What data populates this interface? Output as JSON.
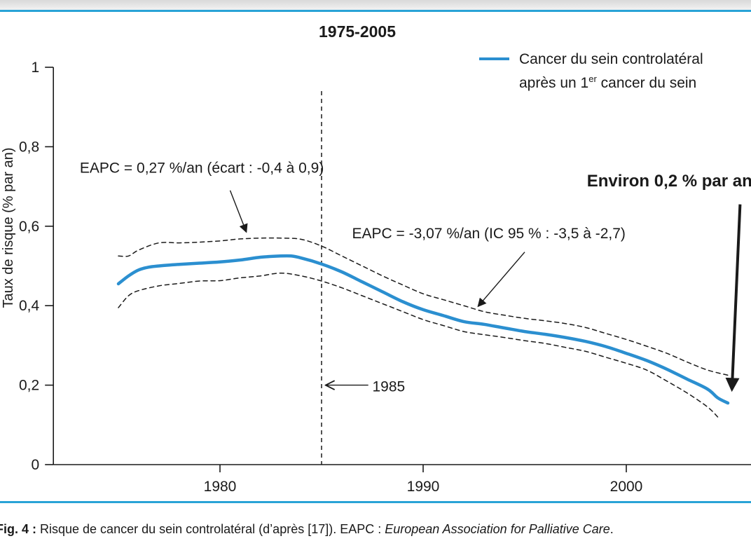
{
  "chart_data": {
    "type": "line",
    "title": "1975-2005",
    "xlabel": "",
    "ylabel": "Taux de risque (% par an)",
    "xlim": [
      1971.8,
      2006.2
    ],
    "ylim": [
      0,
      1
    ],
    "xticks": [
      {
        "value": 1980,
        "label": "1980"
      },
      {
        "value": 1990,
        "label": "1990"
      },
      {
        "value": 2000,
        "label": "2000"
      }
    ],
    "yticks": [
      {
        "value": 0,
        "label": "0"
      },
      {
        "value": 0.2,
        "label": "0,2"
      },
      {
        "value": 0.4,
        "label": "0,4"
      },
      {
        "value": 0.6,
        "label": "0,6"
      },
      {
        "value": 0.8,
        "label": "0,8"
      },
      {
        "value": 1,
        "label": "1"
      }
    ],
    "grid": false,
    "legend_position": "top-right",
    "legend": {
      "line1": "Cancer du sein controlatéral",
      "line2_before": "après un 1",
      "line2_sup": "er",
      "line2_after": " cancer du sein"
    },
    "series": [
      {
        "style": "solid",
        "color": "#2b8fd0",
        "x": [
          1975,
          1975.5,
          1976,
          1976.5,
          1977,
          1978,
          1979,
          1980,
          1981,
          1982,
          1983,
          1983.5,
          1984,
          1985,
          1986,
          1987,
          1988,
          1989,
          1990,
          1991,
          1992,
          1993,
          1994,
          1995,
          1996,
          1997,
          1998,
          1999,
          2000,
          2001,
          2002,
          2003,
          2004,
          2004.5,
          2005
        ],
        "y": [
          0.455,
          0.475,
          0.49,
          0.497,
          0.5,
          0.504,
          0.507,
          0.51,
          0.515,
          0.522,
          0.525,
          0.525,
          0.52,
          0.505,
          0.485,
          0.46,
          0.435,
          0.41,
          0.39,
          0.375,
          0.36,
          0.353,
          0.344,
          0.335,
          0.328,
          0.32,
          0.31,
          0.297,
          0.28,
          0.262,
          0.24,
          0.215,
          0.19,
          0.168,
          0.155
        ]
      },
      {
        "style": "dashed",
        "color": "#1a1a1a",
        "x": [
          1975,
          1975.5,
          1976,
          1977,
          1978,
          1979,
          1980,
          1981,
          1982,
          1983,
          1984,
          1985,
          1986,
          1987,
          1988,
          1989,
          1990,
          1991,
          1992,
          1993,
          1994,
          1995,
          1996,
          1997,
          1998,
          1999,
          2000,
          2001,
          2002,
          2003,
          2004,
          2005
        ],
        "y": [
          0.525,
          0.525,
          0.54,
          0.558,
          0.558,
          0.56,
          0.563,
          0.568,
          0.57,
          0.57,
          0.567,
          0.55,
          0.525,
          0.5,
          0.475,
          0.452,
          0.43,
          0.415,
          0.4,
          0.385,
          0.376,
          0.368,
          0.362,
          0.355,
          0.345,
          0.33,
          0.315,
          0.298,
          0.28,
          0.258,
          0.238,
          0.225
        ]
      },
      {
        "style": "dashed",
        "color": "#1a1a1a",
        "x": [
          1975,
          1975.5,
          1976,
          1977,
          1978,
          1979,
          1980,
          1981,
          1982,
          1983,
          1984,
          1985,
          1986,
          1987,
          1988,
          1989,
          1990,
          1991,
          1992,
          1993,
          1994,
          1995,
          1996,
          1997,
          1998,
          1999,
          2000,
          2001,
          2002,
          2003,
          2004,
          2004.5
        ],
        "y": [
          0.395,
          0.425,
          0.438,
          0.45,
          0.456,
          0.462,
          0.463,
          0.47,
          0.475,
          0.482,
          0.475,
          0.462,
          0.445,
          0.425,
          0.405,
          0.385,
          0.365,
          0.35,
          0.335,
          0.327,
          0.32,
          0.312,
          0.305,
          0.295,
          0.285,
          0.27,
          0.255,
          0.238,
          0.21,
          0.18,
          0.145,
          0.12
        ]
      }
    ],
    "vline": {
      "x": 1985,
      "y_top": 0.94
    },
    "annotations": [
      {
        "text": "EAPC = 0,27 %/an (écart : -0,4 à 0,9)",
        "bold": false,
        "anchor": "start",
        "x": 1973.1,
        "y": 0.735,
        "arrow_from": [
          1980.5,
          0.69
        ],
        "arrow_to": [
          1981.3,
          0.585
        ]
      },
      {
        "text": "EAPC = -3,07 %/an (IC 95 % : -3,5 à -2,7)",
        "bold": false,
        "anchor": "start",
        "x": 1986.5,
        "y": 0.57,
        "arrow_from": [
          1995.0,
          0.535
        ],
        "arrow_to": [
          1992.7,
          0.398
        ]
      },
      {
        "text": "1985",
        "bold": false,
        "anchor": "start",
        "x": 1987.5,
        "y": 0.184,
        "arrow_from": [
          1987.3,
          0.2
        ],
        "arrow_to": [
          1985.2,
          0.2
        ]
      },
      {
        "text": "Environ 0,2 % par an",
        "bold": true,
        "anchor": "end",
        "x": 2006.2,
        "y": 0.7,
        "arrow_from": [
          2005.6,
          0.655
        ],
        "arrow_to": [
          2005.2,
          0.19
        ]
      }
    ]
  },
  "caption": {
    "label": "Fig. 4 :",
    "text": " Risque de cancer du sein controlatéral (d’après [17]). EAPC : ",
    "italic": "European Association for Palliative Care",
    "end": "."
  }
}
